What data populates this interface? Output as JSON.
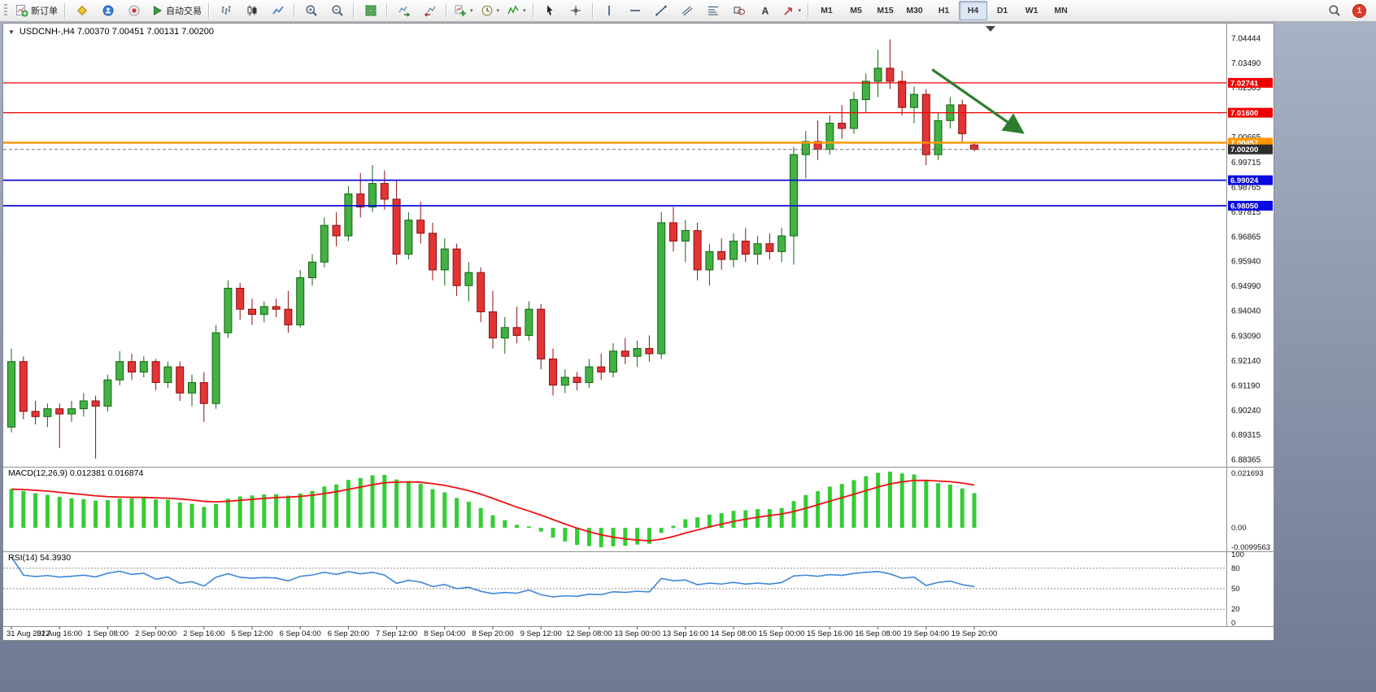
{
  "toolbar": {
    "items": [
      {
        "t": "btn",
        "name": "new-order-button",
        "icon": "new-order",
        "label": "新订单"
      },
      {
        "t": "sep"
      },
      {
        "t": "btn",
        "name": "metaeditor-button",
        "icon": "diamond-yellow"
      },
      {
        "t": "btn",
        "name": "community-button",
        "icon": "circle-blue"
      },
      {
        "t": "btn",
        "name": "news-button",
        "icon": "circle-news"
      },
      {
        "t": "btn",
        "name": "autotrading-button",
        "icon": "play-green",
        "label": "自动交易"
      },
      {
        "t": "sep"
      },
      {
        "t": "btn",
        "name": "bar-chart-button",
        "icon": "bars"
      },
      {
        "t": "btn",
        "name": "candlestick-chart-button",
        "icon": "candles"
      },
      {
        "t": "btn",
        "name": "line-chart-button",
        "icon": "linechart"
      },
      {
        "t": "sep"
      },
      {
        "t": "btn",
        "name": "zoom-in-button",
        "icon": "zoom-in"
      },
      {
        "t": "btn",
        "name": "zoom-out-button",
        "icon": "zoom-out"
      },
      {
        "t": "sep"
      },
      {
        "t": "btn",
        "name": "tile-windows-button",
        "icon": "tile"
      },
      {
        "t": "sep"
      },
      {
        "t": "btn",
        "name": "auto-scroll-button",
        "icon": "autoscroll"
      },
      {
        "t": "btn",
        "name": "chart-shift-button",
        "icon": "chartshift"
      },
      {
        "t": "sep"
      },
      {
        "t": "btn",
        "name": "new-chart-button",
        "icon": "plus-chart",
        "dropdown": true
      },
      {
        "t": "btn",
        "name": "periods-button",
        "icon": "clock",
        "dropdown": true
      },
      {
        "t": "btn",
        "name": "indicators-button",
        "icon": "indicator",
        "dropdown": true
      },
      {
        "t": "sep"
      },
      {
        "t": "btn",
        "name": "cursor-button",
        "icon": "cursor"
      },
      {
        "t": "btn",
        "name": "crosshair-button",
        "icon": "crosshair"
      },
      {
        "t": "sep"
      },
      {
        "t": "btn",
        "name": "vertical-line-button",
        "icon": "vline"
      },
      {
        "t": "btn",
        "name": "horizontal-line-button",
        "icon": "hline"
      },
      {
        "t": "btn",
        "name": "trendline-button",
        "icon": "trendline"
      },
      {
        "t": "btn",
        "name": "channel-button",
        "icon": "channel"
      },
      {
        "t": "btn",
        "name": "fibonacci-button",
        "icon": "fibo"
      },
      {
        "t": "btn",
        "name": "shapes-button",
        "icon": "shapes"
      },
      {
        "t": "btn",
        "name": "text-button",
        "icon": "text"
      },
      {
        "t": "btn",
        "name": "arrows-button",
        "icon": "arrowtool",
        "dropdown": true
      },
      {
        "t": "sep"
      },
      {
        "t": "tf",
        "label": "M1"
      },
      {
        "t": "tf",
        "label": "M5"
      },
      {
        "t": "tf",
        "label": "M15"
      },
      {
        "t": "tf",
        "label": "M30"
      },
      {
        "t": "tf",
        "label": "H1"
      },
      {
        "t": "tf",
        "label": "H4",
        "active": true
      },
      {
        "t": "tf",
        "label": "D1"
      },
      {
        "t": "tf",
        "label": "W1"
      },
      {
        "t": "tf",
        "label": "MN"
      }
    ],
    "search_icon": "magnifier",
    "notification_count": "1"
  },
  "chart": {
    "title": "USDCNH-,H4  7.00370 7.00451 7.00131 7.00200",
    "symbol": "USDCNH-",
    "period": "H4",
    "ohlc": {
      "open": "7.00370",
      "high": "7.00451",
      "low": "7.00131",
      "close": "7.00200"
    },
    "price_lines": [
      {
        "name": "resistance-line-1",
        "price": 7.02741,
        "label": "7.02741",
        "color": "#ee0000",
        "width": 1.3
      },
      {
        "name": "resistance-line-2",
        "price": 7.016,
        "label": "7.01600",
        "color": "#ee0000",
        "width": 1.3
      },
      {
        "name": "pivot-line",
        "price": 7.00457,
        "label": "7.00457",
        "color": "#ff9600",
        "width": 2.4
      },
      {
        "name": "bid-price-line",
        "price": 7.002,
        "label": "7.00200",
        "color": "#777777",
        "width": 1,
        "dashed": true,
        "badge_color": "#2e2e2e"
      },
      {
        "name": "support-line-1",
        "price": 6.99024,
        "label": "6.99024",
        "color": "#0a0ae0",
        "width": 1.8
      },
      {
        "name": "support-line-2",
        "price": 6.9805,
        "label": "6.98050",
        "color": "#0a0ae0",
        "width": 1.8
      }
    ],
    "price_axis_ticks": [
      "7.04444",
      "7.03490",
      "7.02565",
      "7.00665",
      "6.99715",
      "6.98765",
      "6.97815",
      "6.96865",
      "6.95940",
      "6.94990",
      "6.94040",
      "6.93090",
      "6.92140",
      "6.91190",
      "6.90240",
      "6.89315",
      "6.88365"
    ],
    "arrow_annotation": {
      "x1_bar": 76.5,
      "y1_price": 7.0325,
      "x2_bar": 84,
      "y2_price": 7.0085,
      "color": "#2e7d2e"
    },
    "colors": {
      "up_fill": "#43b143",
      "up_border": "#116611",
      "down_fill": "#e23434",
      "down_border": "#8c1010",
      "background": "#ffffff",
      "axis_text": "#111111"
    }
  },
  "chart_data": {
    "type": "candlestick",
    "symbol": "USDCNH",
    "timeframe": "H4",
    "axis_top_value": 7.04444,
    "axis_bottom_value": 6.88365,
    "label_every_n_bars": 4,
    "time_axis_labels": [
      "31 Aug 2022",
      "31 Aug 16:00",
      "1 Sep 08:00",
      "2 Sep 00:00",
      "2 Sep 16:00",
      "5 Sep 12:00",
      "6 Sep 04:00",
      "6 Sep 20:00",
      "7 Sep 12:00",
      "8 Sep 04:00",
      "8 Sep 20:00",
      "9 Sep 12:00",
      "12 Sep 08:00",
      "13 Sep 00:00",
      "13 Sep 16:00",
      "14 Sep 08:00",
      "15 Sep 00:00",
      "15 Sep 16:00",
      "16 Sep 08:00",
      "19 Sep 04:00",
      "19 Sep 20:00"
    ],
    "candles": [
      [
        6.896,
        6.926,
        6.894,
        6.921
      ],
      [
        6.921,
        6.923,
        6.899,
        6.902
      ],
      [
        6.902,
        6.906,
        6.897,
        6.9
      ],
      [
        6.9,
        6.905,
        6.896,
        6.903
      ],
      [
        6.903,
        6.905,
        6.888,
        6.901
      ],
      [
        6.901,
        6.906,
        6.898,
        6.903
      ],
      [
        6.903,
        6.909,
        6.9,
        6.906
      ],
      [
        6.906,
        6.908,
        6.884,
        6.904
      ],
      [
        6.904,
        6.916,
        6.902,
        6.914
      ],
      [
        6.914,
        6.925,
        6.912,
        6.921
      ],
      [
        6.921,
        6.924,
        6.914,
        6.917
      ],
      [
        6.917,
        6.923,
        6.915,
        6.921
      ],
      [
        6.921,
        6.922,
        6.91,
        6.913
      ],
      [
        6.913,
        6.921,
        6.911,
        6.919
      ],
      [
        6.919,
        6.921,
        6.906,
        6.909
      ],
      [
        6.909,
        6.916,
        6.904,
        6.913
      ],
      [
        6.913,
        6.917,
        6.898,
        6.905
      ],
      [
        6.905,
        6.935,
        6.903,
        6.932
      ],
      [
        6.932,
        6.952,
        6.93,
        6.949
      ],
      [
        6.949,
        6.951,
        6.937,
        6.941
      ],
      [
        6.941,
        6.945,
        6.935,
        6.939
      ],
      [
        6.939,
        6.944,
        6.936,
        6.942
      ],
      [
        6.942,
        6.945,
        6.938,
        6.941
      ],
      [
        6.941,
        6.948,
        6.932,
        6.935
      ],
      [
        6.935,
        6.956,
        6.934,
        6.953
      ],
      [
        6.953,
        6.962,
        6.95,
        6.959
      ],
      [
        6.959,
        6.976,
        6.957,
        6.973
      ],
      [
        6.973,
        6.978,
        6.965,
        6.969
      ],
      [
        6.969,
        6.988,
        6.967,
        6.985
      ],
      [
        6.985,
        6.993,
        6.976,
        6.98
      ],
      [
        6.98,
        6.996,
        6.978,
        6.989
      ],
      [
        6.989,
        6.994,
        6.979,
        6.983
      ],
      [
        6.983,
        6.99,
        6.958,
        6.962
      ],
      [
        6.962,
        6.978,
        6.96,
        6.975
      ],
      [
        6.975,
        6.982,
        6.966,
        6.97
      ],
      [
        6.97,
        6.974,
        6.952,
        6.956
      ],
      [
        6.956,
        6.968,
        6.95,
        6.964
      ],
      [
        6.964,
        6.966,
        6.946,
        6.95
      ],
      [
        6.95,
        6.959,
        6.944,
        6.955
      ],
      [
        6.955,
        6.957,
        6.936,
        6.94
      ],
      [
        6.94,
        6.948,
        6.926,
        6.93
      ],
      [
        6.93,
        6.938,
        6.924,
        6.934
      ],
      [
        6.934,
        6.942,
        6.928,
        6.931
      ],
      [
        6.931,
        6.944,
        6.929,
        6.941
      ],
      [
        6.941,
        6.943,
        6.918,
        6.922
      ],
      [
        6.922,
        6.926,
        6.908,
        6.912
      ],
      [
        6.912,
        6.918,
        6.909,
        6.915
      ],
      [
        6.915,
        6.917,
        6.91,
        6.913
      ],
      [
        6.913,
        6.922,
        6.911,
        6.919
      ],
      [
        6.919,
        6.924,
        6.914,
        6.917
      ],
      [
        6.917,
        6.928,
        6.915,
        6.925
      ],
      [
        6.925,
        6.93,
        6.92,
        6.923
      ],
      [
        6.923,
        6.929,
        6.919,
        6.926
      ],
      [
        6.926,
        6.931,
        6.921,
        6.924
      ],
      [
        6.924,
        6.978,
        6.922,
        6.974
      ],
      [
        6.974,
        6.98,
        6.963,
        6.967
      ],
      [
        6.967,
        6.975,
        6.959,
        6.971
      ],
      [
        6.971,
        6.974,
        6.952,
        6.956
      ],
      [
        6.956,
        6.966,
        6.95,
        6.963
      ],
      [
        6.963,
        6.968,
        6.956,
        6.96
      ],
      [
        6.96,
        6.97,
        6.957,
        6.967
      ],
      [
        6.967,
        6.972,
        6.959,
        6.962
      ],
      [
        6.962,
        6.969,
        6.958,
        6.966
      ],
      [
        6.966,
        6.97,
        6.96,
        6.963
      ],
      [
        6.963,
        6.972,
        6.959,
        6.969
      ],
      [
        6.969,
        7.003,
        6.958,
        7.0
      ],
      [
        7.0,
        7.009,
        6.991,
        7.005
      ],
      [
        7.005,
        7.013,
        6.998,
        7.002
      ],
      [
        7.002,
        7.015,
        7.0,
        7.012
      ],
      [
        7.012,
        7.019,
        7.006,
        7.01
      ],
      [
        7.01,
        7.024,
        7.008,
        7.021
      ],
      [
        7.021,
        7.031,
        7.016,
        7.028
      ],
      [
        7.028,
        7.04,
        7.022,
        7.033
      ],
      [
        7.033,
        7.044,
        7.025,
        7.028
      ],
      [
        7.028,
        7.032,
        7.015,
        7.018
      ],
      [
        7.018,
        7.026,
        7.012,
        7.023
      ],
      [
        7.023,
        7.025,
        6.996,
        7.0
      ],
      [
        7.0,
        7.016,
        6.998,
        7.013
      ],
      [
        7.013,
        7.022,
        7.01,
        7.019
      ],
      [
        7.019,
        7.021,
        7.005,
        7.008
      ],
      [
        7.0037,
        7.00451,
        7.00131,
        7.002
      ]
    ],
    "indicators": [
      {
        "name": "MACD",
        "params": "12,26,9",
        "display_values": "0.012381 0.016874"
      },
      {
        "name": "RSI",
        "params": "14",
        "display_value": "54.3930"
      }
    ]
  },
  "macd_panel": {
    "label": "MACD(12,26,9) 0.012381 0.016874",
    "axis_max": "0.021693",
    "axis_zero": "0.00",
    "axis_min": "-0.0099563",
    "histogram_color": "#35cc35",
    "signal_color": "#ee1111"
  },
  "rsi_panel": {
    "label": "RSI(14) 54.3930",
    "axis_labels": [
      "100",
      "80",
      "50",
      "20",
      "0"
    ],
    "levels": [
      80,
      50,
      20
    ],
    "line_color": "#3f87d9"
  }
}
